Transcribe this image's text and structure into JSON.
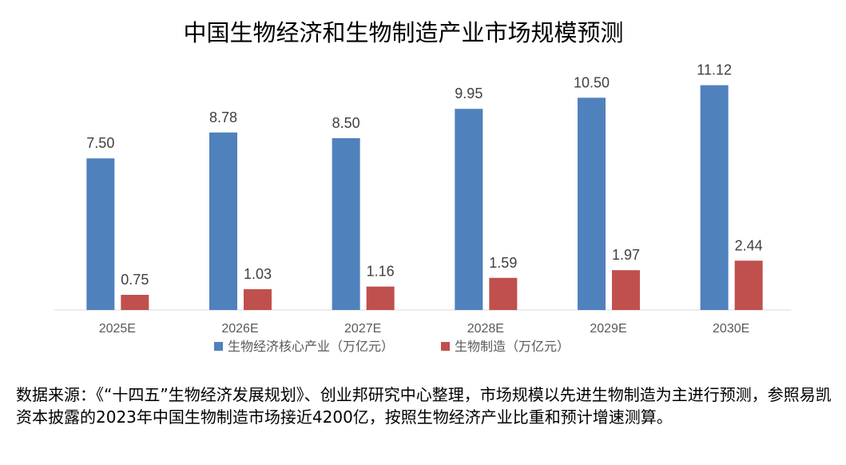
{
  "chart_data": {
    "type": "bar",
    "title": "中国生物经济和生物制造产业市场规模预测",
    "categories": [
      "2025E",
      "2026E",
      "2027E",
      "2028E",
      "2029E",
      "2030E"
    ],
    "series": [
      {
        "name": "生物经济核心产业（万亿元）",
        "color": "#4f81bd",
        "values": [
          7.5,
          8.78,
          8.5,
          9.95,
          10.5,
          11.12
        ],
        "labels": [
          "7.50",
          "8.78",
          "8.50",
          "9.95",
          "10.50",
          "11.12"
        ]
      },
      {
        "name": "生物制造（万亿元）",
        "color": "#c0504d",
        "values": [
          0.75,
          1.03,
          1.16,
          1.59,
          1.97,
          2.44
        ],
        "labels": [
          "0.75",
          "1.03",
          "1.16",
          "1.59",
          "1.97",
          "2.44"
        ]
      }
    ],
    "xlabel": "",
    "ylabel": "",
    "ylim": [
      0,
      11.5
    ],
    "grid": false,
    "legend_position": "bottom"
  },
  "source_note": "数据来源：《“十四五”生物经济发展规划》、创业邦研究中心整理，市场规模以先进生物制造为主进行预测，参照易凯资本披露的2023年中国生物制造市场接近4200亿，按照生物经济产业比重和预计增速测算。"
}
